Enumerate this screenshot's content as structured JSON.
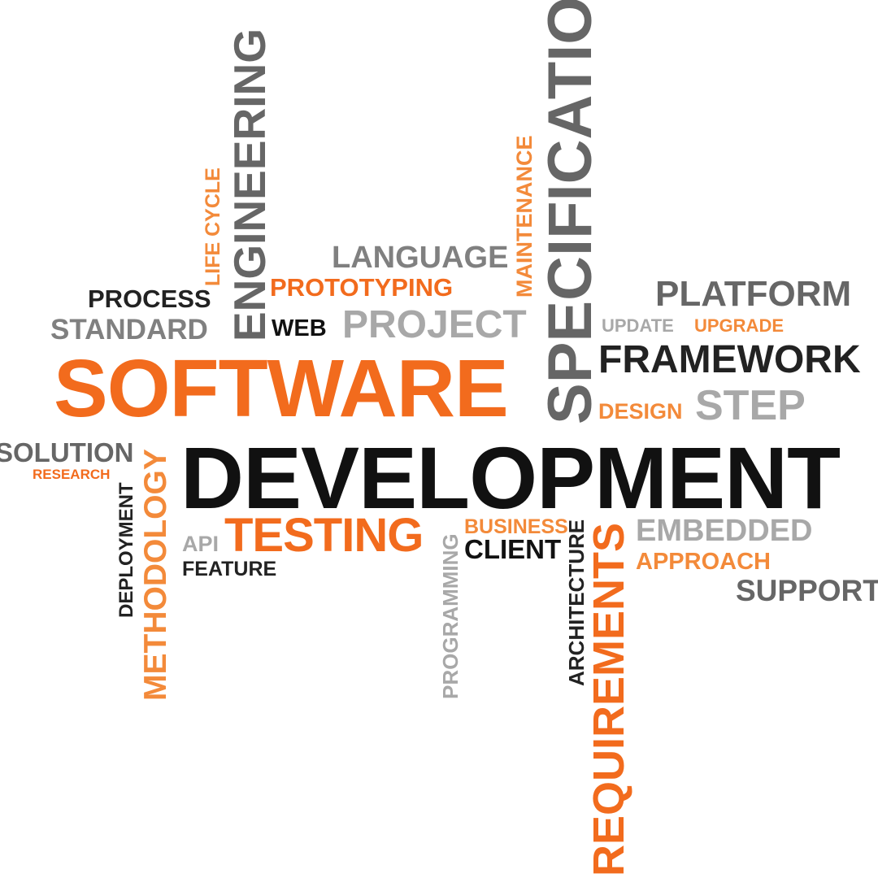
{
  "colors": {
    "background": "#ffffff",
    "orange": "#f26b1d",
    "light_orange": "#f38a3a",
    "dark": "#222222",
    "mid_grey": "#666666",
    "grey": "#808080",
    "light_grey": "#a8a8a8"
  },
  "words": {
    "software": "SOFTWARE",
    "development": "DEVELOPMENT",
    "specification": "SPECIFICATION",
    "engineering": "ENGINEERING",
    "life_cycle": "LIFE CYCLE",
    "maintenance": "MAINTENANCE",
    "language": "LANGUAGE",
    "prototyping": "PROTOTYPING",
    "process": "PROCESS",
    "standard": "STANDARD",
    "web": "WEB",
    "project": "PROJECT",
    "platform": "PLATFORM",
    "update": "UPDATE",
    "upgrade": "UPGRADE",
    "framework": "FRAMEWORK",
    "design": "DESIGN",
    "step": "STEP",
    "solution": "SOLUTION",
    "research": "RESEARCH",
    "deployment": "DEPLOYMENT",
    "methodology": "METHODOLOGY",
    "api": "API",
    "feature": "FEATURE",
    "testing": "TESTING",
    "programming": "PROGRAMMING",
    "business": "BUSINESS",
    "client": "CLIENT",
    "architecture": "ARCHITECTURE",
    "requirements": "REQUIREMENTS",
    "embedded": "EMBEDDED",
    "approach": "APPROACH",
    "support": "SUPPORT"
  }
}
